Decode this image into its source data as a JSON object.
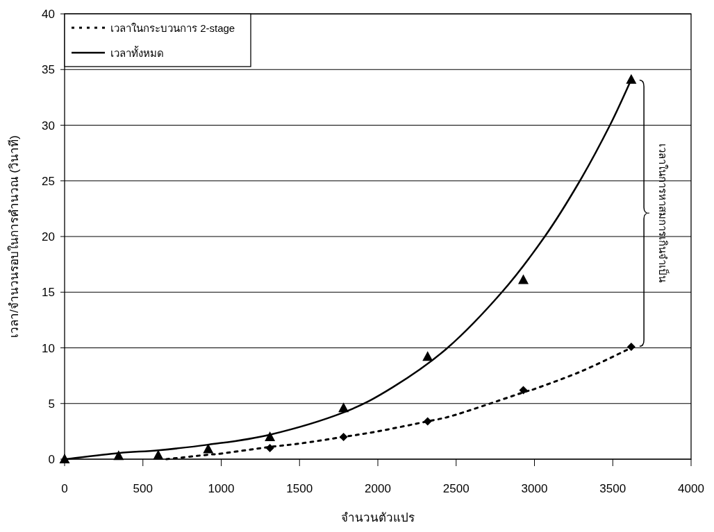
{
  "chart_data": {
    "type": "line",
    "xlabel": "จำนวนตัวแปร",
    "ylabel": "เวลา/จำนวนรอบในการคำนวณ (วินาที)",
    "xlim": [
      0,
      4000
    ],
    "xticks": [
      0,
      500,
      1000,
      1500,
      2000,
      2500,
      3000,
      3500,
      4000
    ],
    "ylim": [
      0,
      40
    ],
    "yticks": [
      0,
      5,
      10,
      15,
      20,
      25,
      30,
      35,
      40
    ],
    "grid": "y",
    "legend": "top left",
    "annotations": [
      "เวลาในการหาสมการเกินจำเป็น"
    ],
    "series": [
      {
        "name": "เวลาในกระบวนการ 2-stage",
        "type": "line",
        "color": "#000000",
        "line_style": "dotted",
        "marker": "none",
        "x": [
          650,
          917,
          1000,
          1311,
          1500,
          1781,
          2000,
          2318,
          2500,
          2929,
          3000,
          3300,
          3618
        ],
        "values": [
          0,
          0.4,
          0.5,
          1.1,
          1.4,
          2.0,
          2.5,
          3.4,
          4.0,
          6.0,
          6.3,
          7.9,
          10.0
        ]
      },
      {
        "name": "เวลาทั้งหมด",
        "type": "line",
        "color": "#000000",
        "line_style": "solid",
        "marker": "none",
        "x": [
          0,
          345,
          598,
          917,
          1311,
          1781,
          2100,
          2445,
          2792,
          3066,
          3290,
          3482,
          3618
        ],
        "values": [
          0,
          0.55,
          0.8,
          1.3,
          2.2,
          4.2,
          6.5,
          10,
          15,
          20,
          25,
          30,
          34.1
        ]
      },
      {
        "type": "scatter",
        "color": "#000000",
        "marker": "diamond",
        "x": [
          1311,
          1781,
          2318,
          2929,
          3618
        ],
        "values": [
          1.0,
          2.0,
          3.4,
          6.2,
          10.1
        ]
      },
      {
        "type": "scatter",
        "color": "#000000",
        "marker": "triangle",
        "x": [
          0,
          345,
          598,
          917,
          1311,
          1781,
          2318,
          2929,
          3618
        ],
        "values": [
          0,
          0.3,
          0.35,
          0.9,
          2.0,
          4.6,
          9.2,
          16.1,
          34.1
        ]
      }
    ]
  }
}
